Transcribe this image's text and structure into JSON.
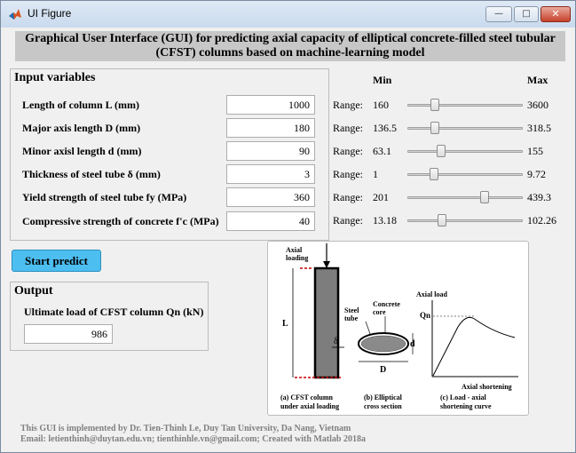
{
  "window": {
    "title": "UI Figure",
    "min_glyph": "—",
    "max_glyph": "□",
    "close_glyph": "✕"
  },
  "header": {
    "line1": "Graphical User Interface (GUI) for predicting axial capacity of elliptical concrete-filled steel tubular",
    "line2": "(CFST) columns based on machine-learning model"
  },
  "inputs": {
    "title": "Input variables",
    "variables": [
      {
        "label": "Length of column L (mm)",
        "value": "1000"
      },
      {
        "label": "Major axis length D (mm)",
        "value": "180"
      },
      {
        "label": "Minor axisl length d (mm)",
        "value": "90"
      },
      {
        "label": "Thickness of steel tube δ (mm)",
        "value": "3"
      },
      {
        "label": "Yield strength of steel tube fy (MPa)",
        "value": "360"
      },
      {
        "label": "Compressive strength of concrete f'c (MPa)",
        "value": "40"
      }
    ]
  },
  "ranges": {
    "min_header": "Min",
    "max_header": "Max",
    "range_label": "Range:",
    "items": [
      {
        "min": "160",
        "max": "3600",
        "slider_fraction": 0.24
      },
      {
        "min": "136.5",
        "max": "318.5",
        "slider_fraction": 0.24
      },
      {
        "min": "63.1",
        "max": "155",
        "slider_fraction": 0.29
      },
      {
        "min": "1",
        "max": "9.72",
        "slider_fraction": 0.23
      },
      {
        "min": "201",
        "max": "439.3",
        "slider_fraction": 0.67
      },
      {
        "min": "13.18",
        "max": "102.26",
        "slider_fraction": 0.3
      }
    ]
  },
  "predict": {
    "label": "Start predict"
  },
  "output": {
    "title": "Output",
    "label": "Ultimate load of CFST column Qn (kN)",
    "value": "986"
  },
  "figure": {
    "axial_loading_1": "Axial",
    "axial_loading_2": "loading",
    "L": "L",
    "delta": "δ",
    "steel_1": "Steel",
    "steel_2": "tube",
    "concrete_1": "Concrete",
    "concrete_2": "core",
    "d": "d",
    "D": "D",
    "axial_load": "Axial load",
    "Qn": "Qn",
    "axial_shortening": "Axial shortening",
    "caption_a1": "(a) CFST column",
    "caption_a2": "under axial loading",
    "caption_b1": "(b) Elliptical",
    "caption_b2": "cross section",
    "caption_c1": "(c) Load - axial",
    "caption_c2": "shortening curve"
  },
  "footer": {
    "line1": "This GUI is implemented by Dr. Tien-Thinh Le, Duy Tan University, Da Nang, Vietnam",
    "line2": "Email: letienthinh@duytan.edu.vn; tienthinhle.vn@gmail.com; Created with Matlab 2018a"
  }
}
